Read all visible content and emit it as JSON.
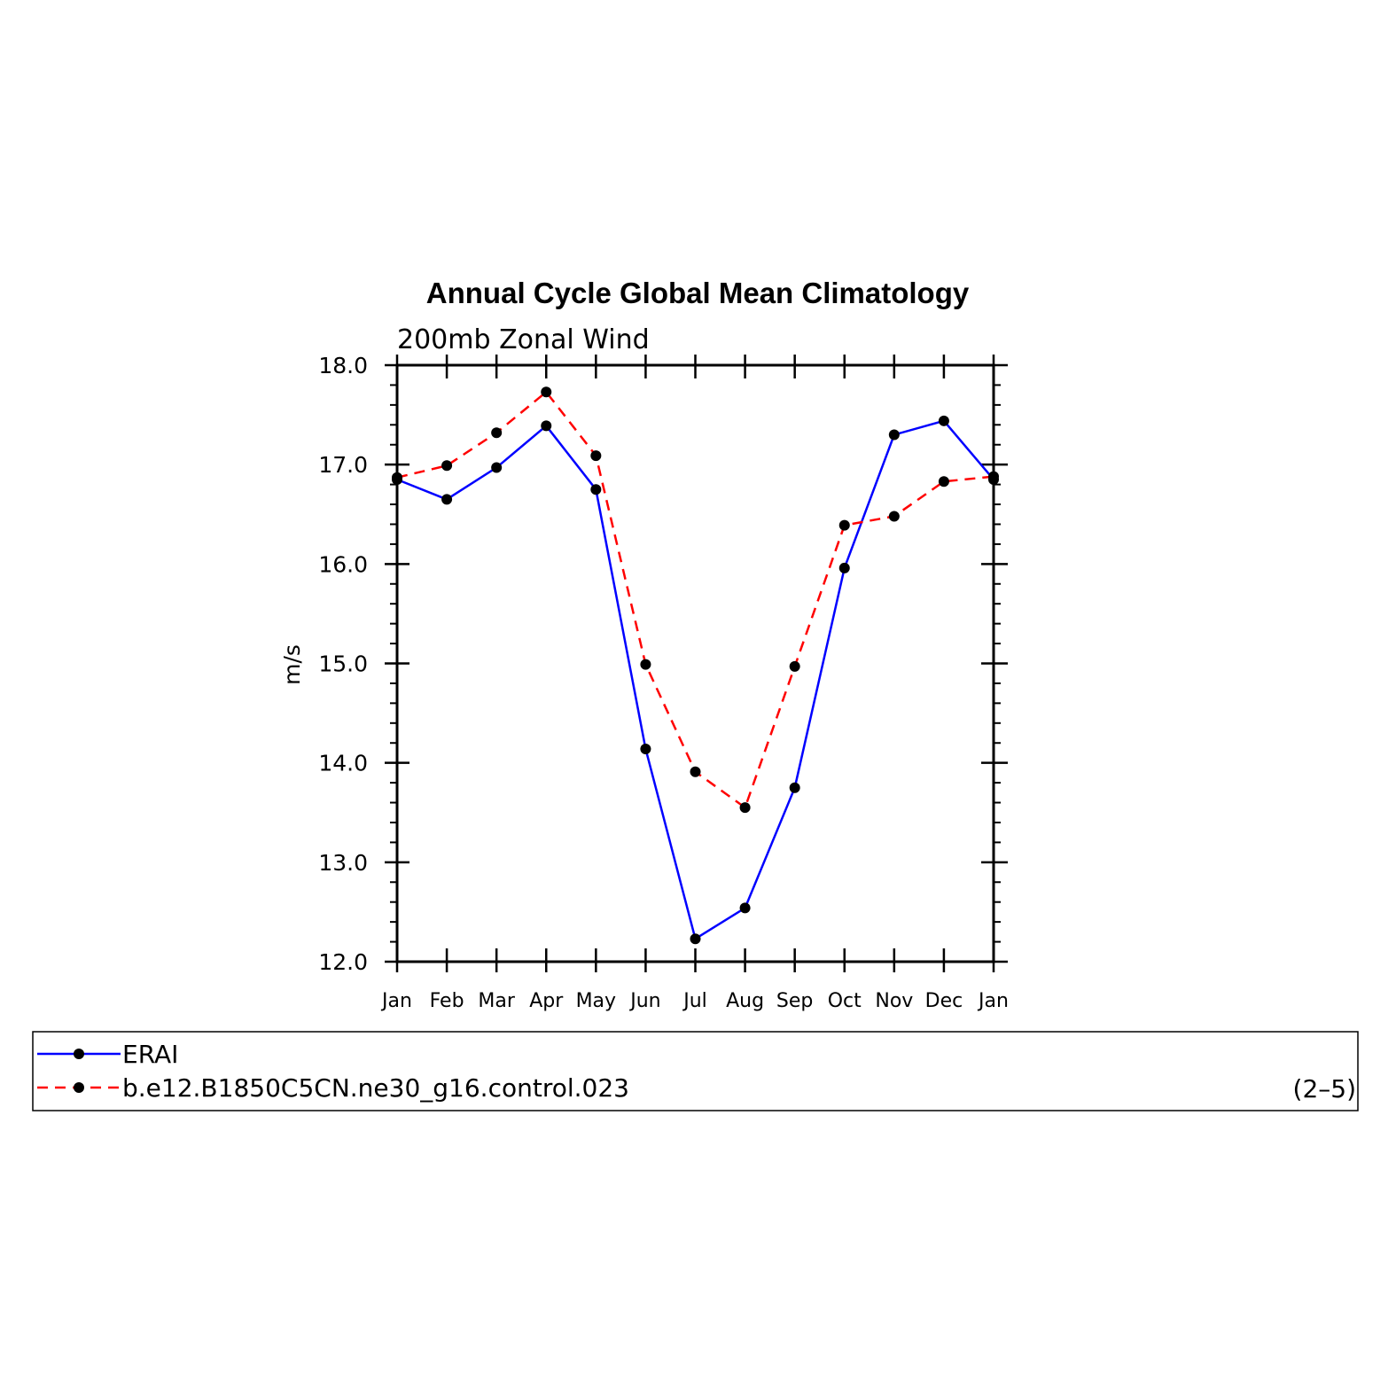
{
  "chart_data": {
    "type": "line",
    "title": "Annual Cycle Global Mean Climatology",
    "subtitle": "200mb Zonal Wind",
    "xlabel": "",
    "ylabel": "m/s",
    "categories": [
      "Jan",
      "Feb",
      "Mar",
      "Apr",
      "May",
      "Jun",
      "Jul",
      "Aug",
      "Sep",
      "Oct",
      "Nov",
      "Dec",
      "Jan"
    ],
    "ylim": [
      12.0,
      18.0
    ],
    "yticks": [
      "12.0",
      "13.0",
      "14.0",
      "15.0",
      "16.0",
      "17.0",
      "18.0"
    ],
    "series": [
      {
        "name": "ERAI",
        "color": "#0000ff",
        "dash": "solid",
        "marker": "dot",
        "values": [
          16.85,
          16.65,
          16.97,
          17.39,
          16.75,
          14.14,
          12.23,
          12.54,
          13.75,
          15.96,
          17.3,
          17.44,
          16.85
        ]
      },
      {
        "name": "b.e12.B1850C5CN.ne30_g16.control.023",
        "color": "#ff0000",
        "dash": "dashed",
        "marker": "dot",
        "values": [
          16.87,
          16.99,
          17.32,
          17.73,
          17.09,
          14.99,
          13.91,
          13.55,
          14.97,
          16.39,
          16.48,
          16.83,
          16.88
        ]
      }
    ],
    "legend_position": "bottom",
    "grid": false
  },
  "panel_label": "(2–5)"
}
